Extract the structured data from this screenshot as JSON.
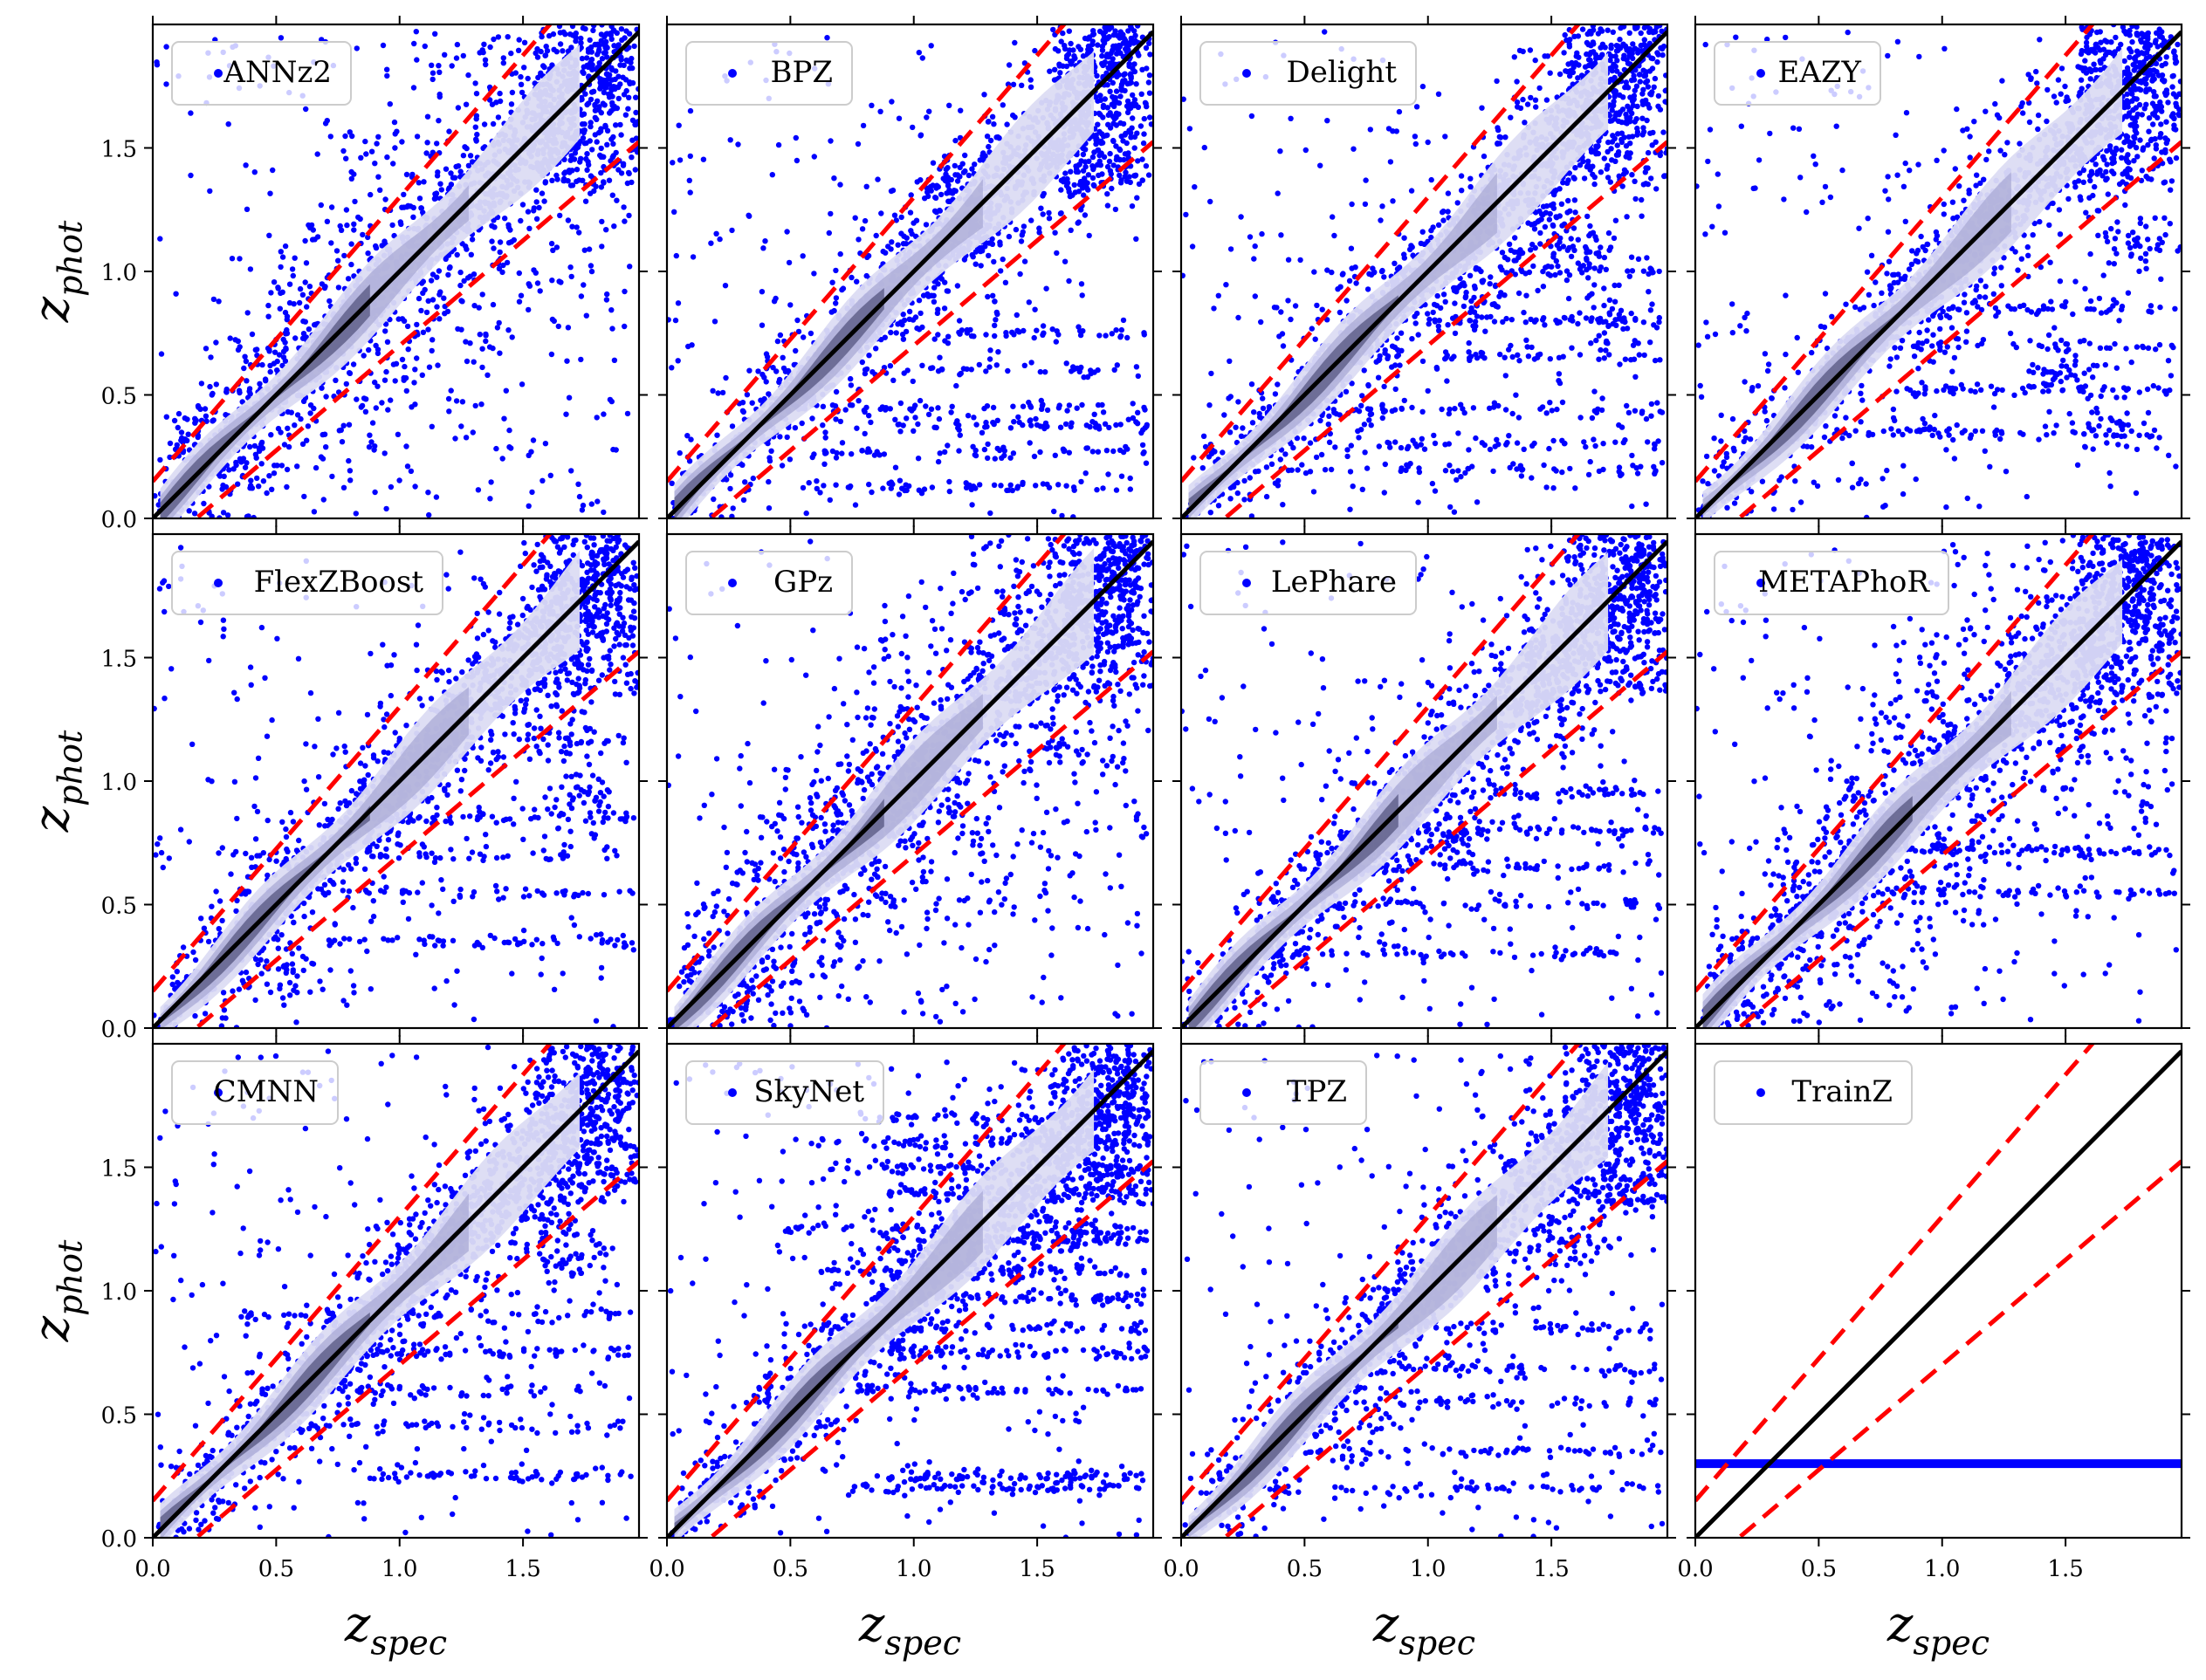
{
  "chart_data": {
    "type": "scatter",
    "layout": "grid-3x4",
    "shared_x": true,
    "shared_y": true,
    "xlabel": "z_spec",
    "ylabel": "z_phot",
    "xlim": [
      0,
      1.97
    ],
    "ylim": [
      0,
      2.0
    ],
    "xticks": [
      0.0,
      0.5,
      1.0,
      1.5
    ],
    "yticks": [
      0.0,
      0.5,
      1.0,
      1.5
    ],
    "xtick_labels": [
      "0.0",
      "0.5",
      "1.0",
      "1.5"
    ],
    "ytick_labels": [
      "0.0",
      "0.5",
      "1.0",
      "1.5"
    ],
    "grid": false,
    "legend_position": "upper-left",
    "colors": {
      "points": "#0000ff",
      "density_light": "#dcdcf3",
      "density_mid": "#a9a9d6",
      "density_dark": "#55557f",
      "identity_line": "#000000",
      "outlier_lines": "#ff0000"
    },
    "reference_lines": {
      "identity": {
        "slope": 1.0,
        "intercept": 0.0
      },
      "outlier_upper": {
        "slope": 1.15,
        "intercept": 0.15
      },
      "outlier_lower": {
        "slope": 0.85,
        "intercept": -0.15
      }
    },
    "panels": [
      {
        "code": "ANNz2",
        "pattern": "broad",
        "extra_rows": [],
        "spots": []
      },
      {
        "code": "BPZ",
        "pattern": "striped",
        "extra_rows": [
          0.13,
          0.27,
          0.38,
          0.45,
          0.6,
          0.75
        ],
        "spots": [
          [
            1.25,
            1.12
          ],
          [
            1.15,
            1.35
          ],
          [
            1.7,
            1.4
          ]
        ]
      },
      {
        "code": "Delight",
        "pattern": "striped",
        "extra_rows": [
          0.2,
          0.3,
          0.44,
          0.65,
          0.8,
          1.0
        ],
        "spots": [
          [
            1.2,
            0.9
          ],
          [
            1.6,
            1.05
          ],
          [
            1.5,
            1.2
          ],
          [
            1.75,
            0.8
          ]
        ]
      },
      {
        "code": "EAZY",
        "pattern": "striped",
        "extra_rows": [
          0.35,
          0.52,
          0.7,
          0.85
        ],
        "spots": [
          [
            1.7,
            0.38
          ],
          [
            1.5,
            0.6
          ],
          [
            1.8,
            1.1
          ]
        ]
      },
      {
        "code": "FlexZBoost",
        "pattern": "striped",
        "extra_rows": [
          0.35,
          0.55,
          0.7,
          0.85
        ],
        "spots": [
          [
            1.65,
            1.15
          ],
          [
            1.75,
            0.95
          ],
          [
            0.55,
            0.22
          ]
        ]
      },
      {
        "code": "GPz",
        "pattern": "broad",
        "extra_rows": [],
        "spots": []
      },
      {
        "code": "LePhare",
        "pattern": "striped",
        "extra_rows": [
          0.3,
          0.5,
          0.65,
          0.8,
          0.95
        ],
        "spots": [
          [
            1.5,
            1.35
          ],
          [
            1.1,
            0.75
          ]
        ]
      },
      {
        "code": "METAPhoR",
        "pattern": "broad",
        "extra_rows": [
          0.55,
          0.72
        ],
        "spots": []
      },
      {
        "code": "CMNN",
        "pattern": "striped",
        "extra_rows": [
          0.25,
          0.45,
          0.6,
          0.75,
          0.9
        ],
        "spots": [
          [
            1.55,
            1.3
          ],
          [
            1.7,
            1.1
          ]
        ]
      },
      {
        "code": "SkyNet",
        "pattern": "banded",
        "extra_rows": [
          0.2,
          0.25,
          0.6,
          0.75,
          0.85,
          0.97,
          1.08,
          1.2,
          1.25,
          1.4,
          1.5,
          1.6,
          1.7
        ],
        "spots": [
          [
            1.6,
            1.25
          ]
        ]
      },
      {
        "code": "TPZ",
        "pattern": "striped",
        "extra_rows": [
          0.2,
          0.35,
          0.55,
          0.68,
          0.85
        ],
        "spots": [
          [
            1.55,
            1.2
          ],
          [
            1.75,
            1.4
          ]
        ]
      },
      {
        "code": "TrainZ",
        "pattern": "constant",
        "constant_value": 0.3,
        "extra_rows": [],
        "spots": []
      }
    ]
  }
}
